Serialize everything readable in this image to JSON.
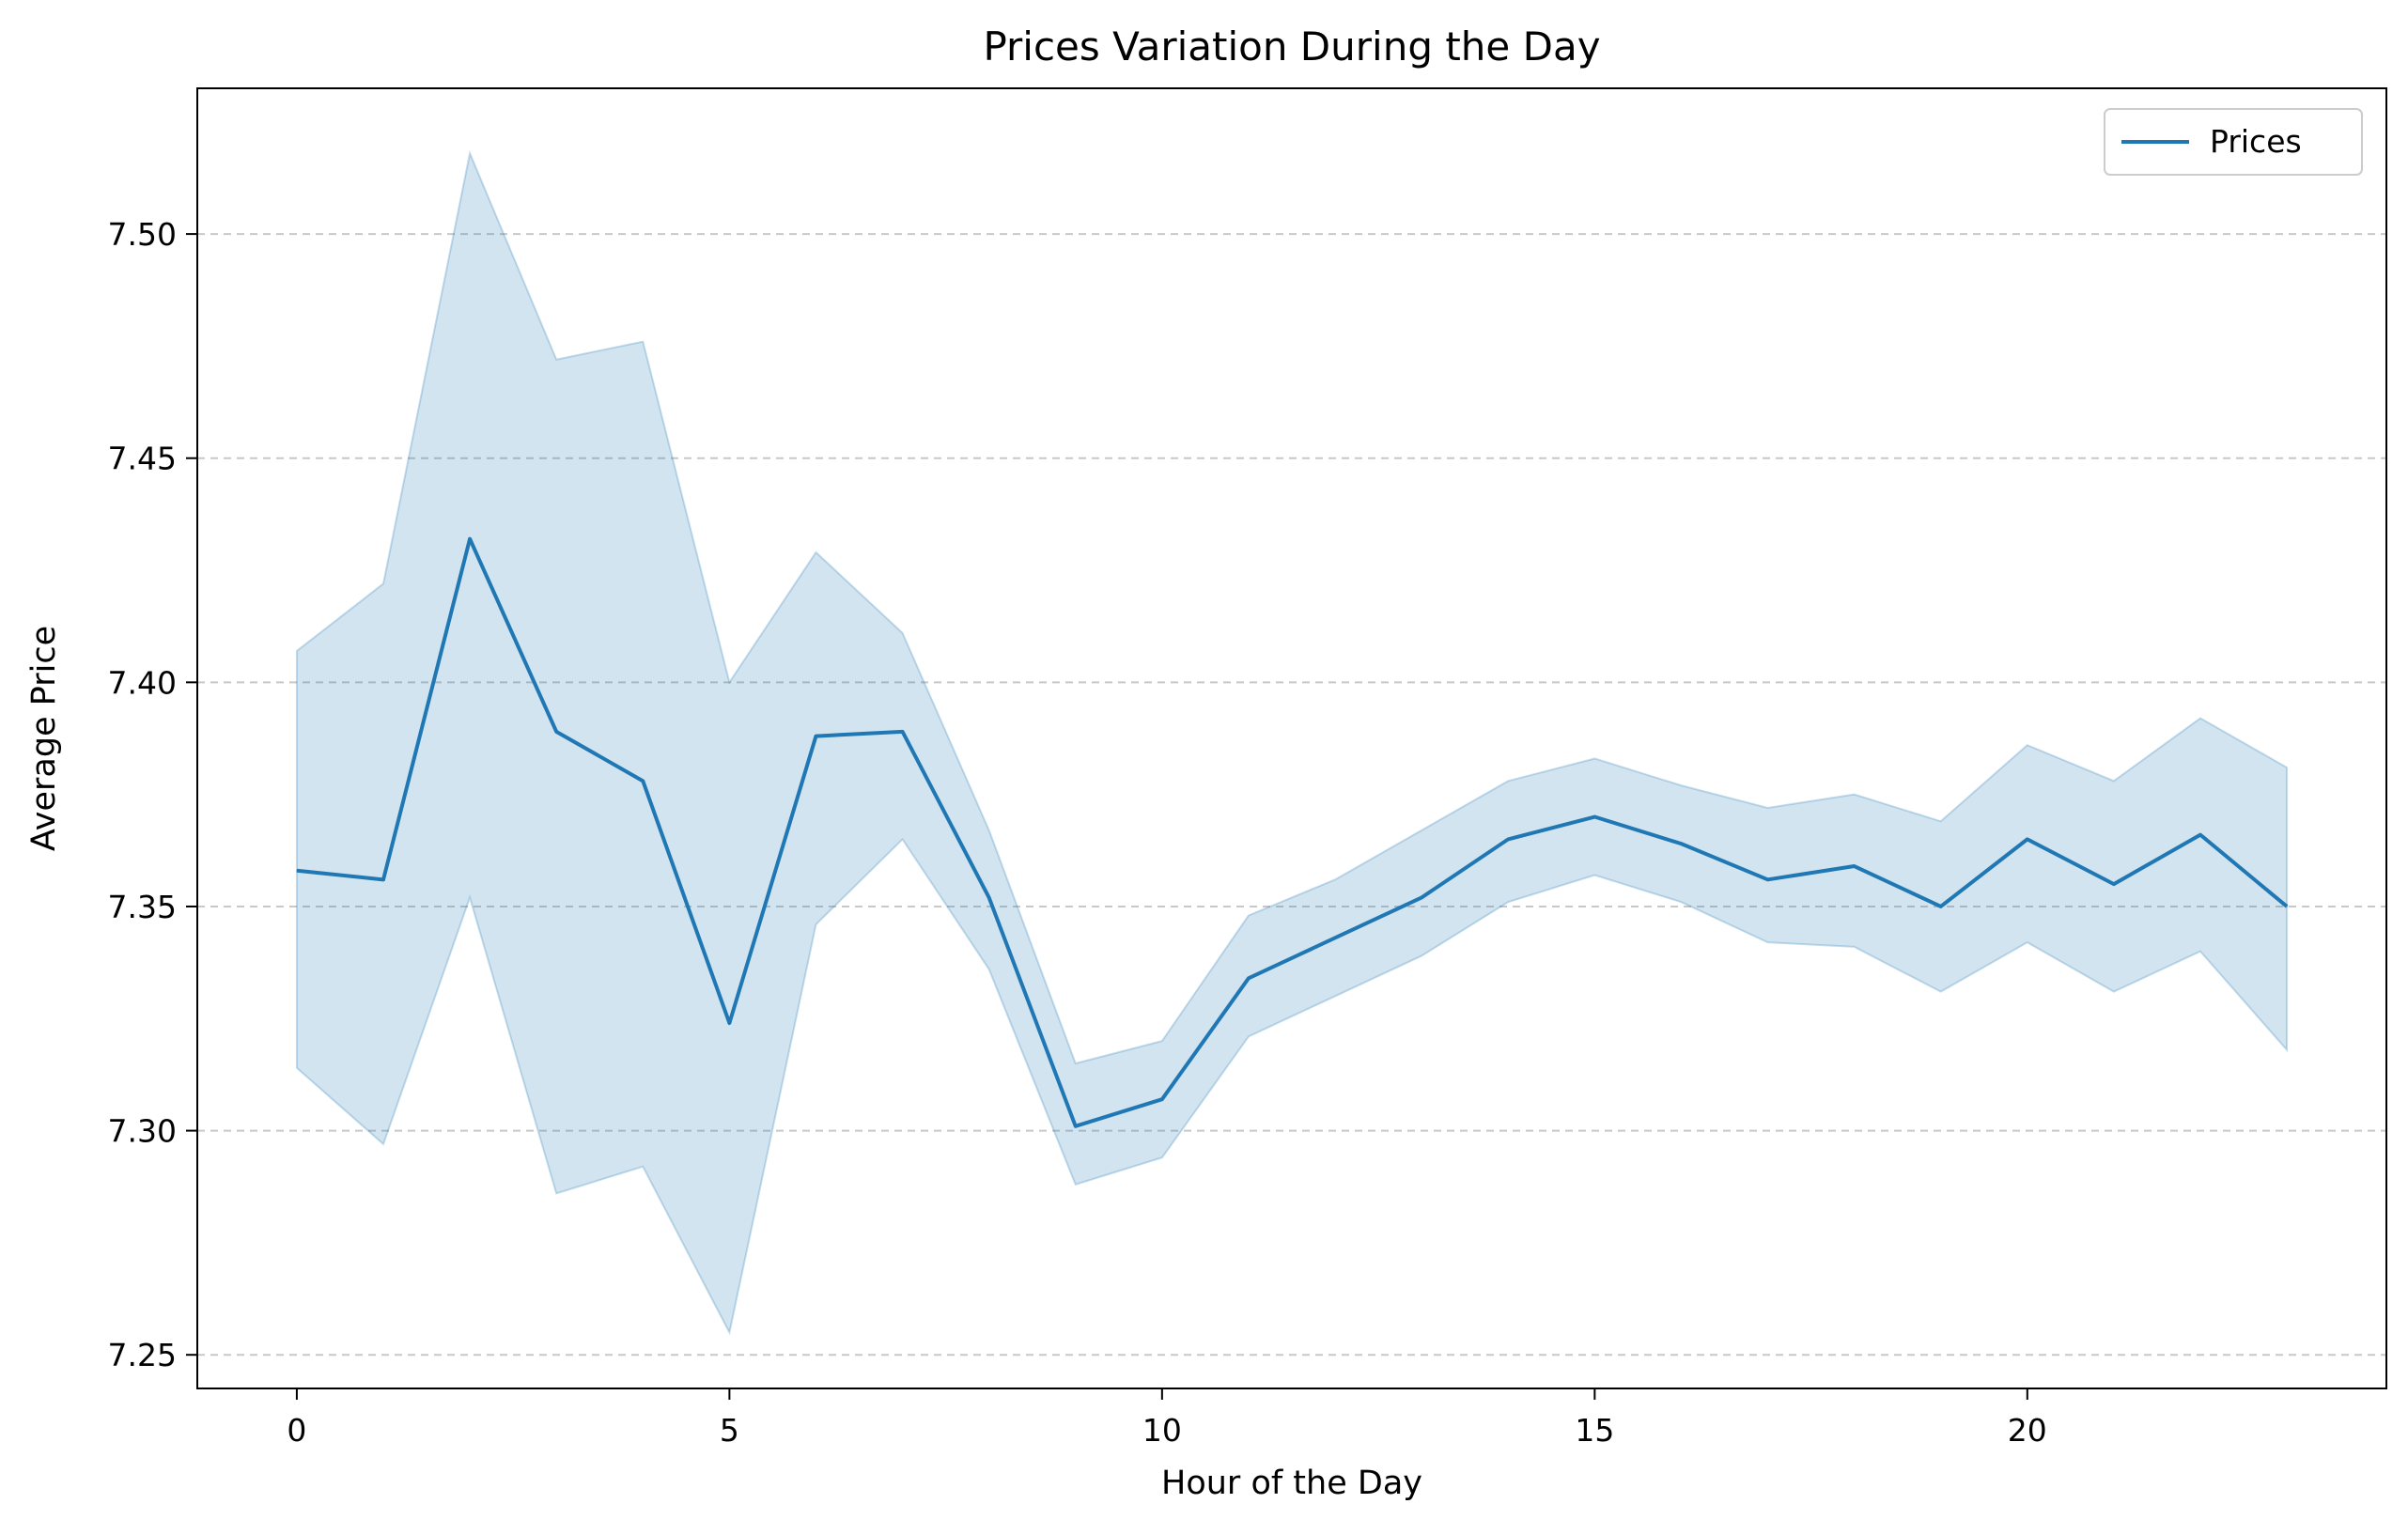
{
  "chart_data": {
    "type": "line",
    "title": "Prices Variation During the Day",
    "xlabel": "Hour of the Day",
    "ylabel": "Average Price",
    "xlim": [
      -1.15,
      24.15
    ],
    "ylim": [
      7.2425,
      7.5325
    ],
    "xticks": [
      0,
      5,
      10,
      15,
      20
    ],
    "xtick_labels": [
      "0",
      "5",
      "10",
      "15",
      "20"
    ],
    "yticks": [
      7.25,
      7.3,
      7.35,
      7.4,
      7.45,
      7.5
    ],
    "ytick_labels": [
      "7.25",
      "7.30",
      "7.35",
      "7.40",
      "7.45",
      "7.50"
    ],
    "grid": "y-dashed",
    "legend_position": "top-right",
    "colors": {
      "line": "#1f77b4",
      "band": "#1f77b4",
      "grid": "#b0b0b0"
    },
    "x": [
      0,
      1,
      2,
      3,
      4,
      5,
      6,
      7,
      8,
      9,
      10,
      11,
      12,
      13,
      14,
      15,
      16,
      17,
      18,
      19,
      20,
      21,
      22,
      23
    ],
    "series": [
      {
        "name": "Prices",
        "values": [
          7.358,
          7.356,
          7.432,
          7.389,
          7.378,
          7.324,
          7.388,
          7.389,
          7.352,
          7.301,
          7.307,
          7.334,
          7.343,
          7.352,
          7.365,
          7.37,
          7.364,
          7.356,
          7.359,
          7.35,
          7.365,
          7.355,
          7.366,
          7.35
        ],
        "ci_upper": [
          7.407,
          7.422,
          7.518,
          7.472,
          7.476,
          7.4,
          7.429,
          7.411,
          7.367,
          7.315,
          7.32,
          7.348,
          7.356,
          7.367,
          7.378,
          7.383,
          7.377,
          7.372,
          7.375,
          7.369,
          7.386,
          7.378,
          7.392,
          7.381
        ],
        "ci_lower": [
          7.314,
          7.297,
          7.352,
          7.286,
          7.292,
          7.255,
          7.346,
          7.365,
          7.336,
          7.288,
          7.294,
          7.321,
          7.33,
          7.339,
          7.351,
          7.357,
          7.351,
          7.342,
          7.341,
          7.331,
          7.342,
          7.331,
          7.34,
          7.318
        ]
      }
    ]
  }
}
